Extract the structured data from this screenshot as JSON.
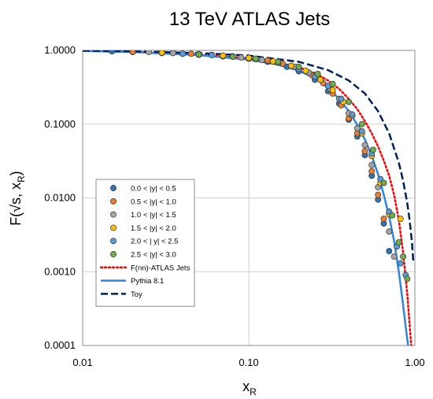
{
  "chart_data": {
    "type": "scatter",
    "title": "13 TeV ATLAS Jets",
    "xlabel": "x",
    "xlabel_sub": "R",
    "ylabel": "F(√s, x",
    "ylabel_sub": "R",
    "ylabel_close": ")",
    "x_scale": "log",
    "y_scale": "log",
    "xlim": [
      0.01,
      1.0
    ],
    "ylim": [
      0.0001,
      1.0
    ],
    "x_ticks": [
      {
        "value": 0.01,
        "label": "0.01"
      },
      {
        "value": 0.1,
        "label": "0.10"
      },
      {
        "value": 1.0,
        "label": "1.00"
      }
    ],
    "y_ticks": [
      {
        "value": 1.0,
        "label": "1.0000"
      },
      {
        "value": 0.1,
        "label": "0.1000"
      },
      {
        "value": 0.01,
        "label": "0.0100"
      },
      {
        "value": 0.001,
        "label": "0.0010"
      },
      {
        "value": 0.0001,
        "label": "0.0001"
      }
    ],
    "grid": true,
    "legend_position": "bottom-left",
    "series": [
      {
        "name": "0.0 < |y| < 0.5",
        "kind": "points",
        "color": "#2E75B6",
        "x": [
          0.015,
          0.02,
          0.03,
          0.04,
          0.05,
          0.07,
          0.1,
          0.13,
          0.17,
          0.2,
          0.25,
          0.3,
          0.35,
          0.4,
          0.45,
          0.5,
          0.55,
          0.6,
          0.65,
          0.7
        ],
        "y": [
          0.97,
          0.95,
          0.92,
          0.9,
          0.87,
          0.83,
          0.77,
          0.7,
          0.6,
          0.52,
          0.4,
          0.28,
          0.19,
          0.115,
          0.068,
          0.038,
          0.02,
          0.0095,
          0.0045,
          0.0019
        ]
      },
      {
        "name": "0.5 < |y| < 1.0",
        "kind": "points",
        "color": "#ED7D31",
        "x": [
          0.02,
          0.03,
          0.045,
          0.06,
          0.08,
          0.1,
          0.13,
          0.16,
          0.2,
          0.24,
          0.28,
          0.32,
          0.36,
          0.4,
          0.45,
          0.5,
          0.55,
          0.6,
          0.65
        ],
        "y": [
          0.96,
          0.93,
          0.9,
          0.87,
          0.83,
          0.79,
          0.73,
          0.66,
          0.57,
          0.46,
          0.36,
          0.26,
          0.18,
          0.12,
          0.075,
          0.043,
          0.023,
          0.011,
          0.0052
        ]
      },
      {
        "name": "1.0 < |y| < 1.5",
        "kind": "points",
        "color": "#A5A5A5",
        "x": [
          0.025,
          0.035,
          0.05,
          0.07,
          0.09,
          0.12,
          0.15,
          0.19,
          0.23,
          0.27,
          0.31,
          0.35,
          0.4,
          0.45,
          0.5,
          0.55,
          0.6,
          0.7,
          0.75
        ],
        "y": [
          0.95,
          0.92,
          0.88,
          0.84,
          0.8,
          0.74,
          0.68,
          0.6,
          0.5,
          0.4,
          0.3,
          0.22,
          0.14,
          0.088,
          0.052,
          0.028,
          0.014,
          0.0035,
          0.0016
        ]
      },
      {
        "name": "1.5 < |y| < 2.0",
        "kind": "points",
        "color": "#FFC000",
        "x": [
          0.03,
          0.05,
          0.07,
          0.1,
          0.14,
          0.18,
          0.22,
          0.27,
          0.32,
          0.37,
          0.42,
          0.48,
          0.55,
          0.62,
          0.7,
          0.78,
          0.82
        ],
        "y": [
          0.93,
          0.89,
          0.85,
          0.79,
          0.71,
          0.62,
          0.53,
          0.4,
          0.29,
          0.2,
          0.13,
          0.075,
          0.037,
          0.016,
          0.006,
          0.0022,
          0.0052
        ]
      },
      {
        "name": "2.0 < | y| < 2.5",
        "kind": "points",
        "color": "#5B9BD5",
        "x": [
          0.04,
          0.06,
          0.08,
          0.11,
          0.15,
          0.2,
          0.25,
          0.3,
          0.36,
          0.42,
          0.48,
          0.55,
          0.62,
          0.7,
          0.78,
          0.82,
          0.88
        ],
        "y": [
          0.9,
          0.86,
          0.82,
          0.76,
          0.68,
          0.56,
          0.44,
          0.33,
          0.22,
          0.135,
          0.08,
          0.04,
          0.018,
          0.0065,
          0.0022,
          0.0013,
          0.0009
        ]
      },
      {
        "name": "2.5 < |y| < 3.0",
        "kind": "points",
        "color": "#70AD47",
        "x": [
          0.05,
          0.08,
          0.11,
          0.15,
          0.2,
          0.26,
          0.32,
          0.4,
          0.48,
          0.56,
          0.65,
          0.73,
          0.8,
          0.85,
          0.9
        ],
        "y": [
          0.88,
          0.82,
          0.77,
          0.7,
          0.6,
          0.48,
          0.35,
          0.2,
          0.1,
          0.045,
          0.016,
          0.0058,
          0.0025,
          0.0016,
          0.0008
        ]
      },
      {
        "name": "F(nn)-ATLAS Jets",
        "kind": "dotted-line",
        "color": "#FF0000",
        "x": [
          0.01,
          0.02,
          0.05,
          0.1,
          0.15,
          0.2,
          0.25,
          0.3,
          0.35,
          0.4,
          0.45,
          0.5,
          0.55,
          0.6,
          0.65,
          0.7,
          0.75,
          0.8,
          0.85,
          0.9,
          0.95
        ],
        "y": [
          0.99,
          0.96,
          0.88,
          0.78,
          0.68,
          0.59,
          0.49,
          0.39,
          0.3,
          0.22,
          0.16,
          0.11,
          0.075,
          0.05,
          0.032,
          0.02,
          0.011,
          0.005,
          0.0018,
          0.0005,
          0.0001
        ]
      },
      {
        "name": "Pythia 8.1",
        "kind": "line",
        "color": "#2E86DE",
        "x": [
          0.01,
          0.02,
          0.05,
          0.1,
          0.15,
          0.2,
          0.25,
          0.3,
          0.35,
          0.4,
          0.45,
          0.5,
          0.55,
          0.6,
          0.65,
          0.7,
          0.75,
          0.8,
          0.85,
          0.88,
          0.91
        ],
        "y": [
          0.98,
          0.95,
          0.86,
          0.75,
          0.64,
          0.53,
          0.42,
          0.31,
          0.22,
          0.15,
          0.098,
          0.062,
          0.037,
          0.021,
          0.011,
          0.0056,
          0.0026,
          0.001,
          0.00035,
          0.00018,
          0.0001
        ]
      },
      {
        "name": "Toy",
        "kind": "dashed-line",
        "color": "#002060",
        "x": [
          0.01,
          0.02,
          0.05,
          0.1,
          0.2,
          0.3,
          0.4,
          0.5,
          0.6,
          0.7,
          0.8,
          0.85,
          0.9,
          0.93,
          0.96,
          0.98
        ],
        "y": [
          0.99,
          0.97,
          0.92,
          0.85,
          0.7,
          0.54,
          0.39,
          0.26,
          0.15,
          0.075,
          0.03,
          0.017,
          0.0085,
          0.005,
          0.0025,
          0.0013
        ]
      }
    ]
  }
}
